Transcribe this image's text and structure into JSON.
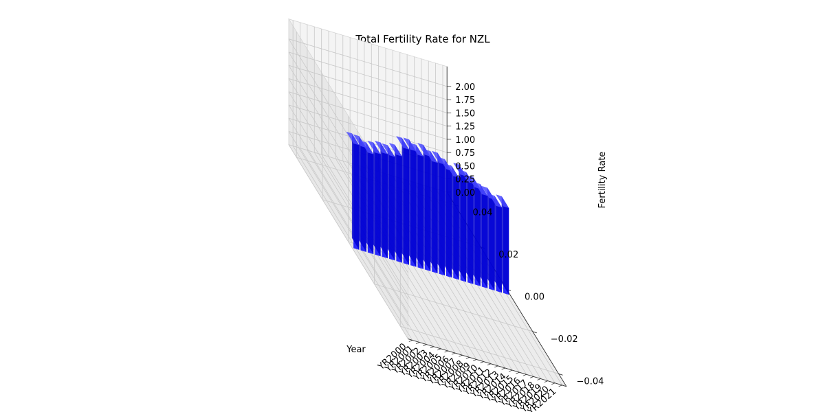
{
  "chart_data": {
    "type": "bar",
    "title": "Total Fertility Rate for NZL",
    "xlabel": "Year",
    "ylabel": "",
    "zlabel": "Fertility Rate",
    "categories": [
      "YR2000",
      "YR2001",
      "YR2002",
      "YR2003",
      "YR2004",
      "YR2005",
      "YR2006",
      "YR2007",
      "YR2008",
      "YR2009",
      "YR2010",
      "YR2011",
      "YR2012",
      "YR2013",
      "YR2014",
      "YR2015",
      "YR2016",
      "YR2017",
      "YR2018",
      "YR2019",
      "YR2020",
      "YR2021"
    ],
    "values": [
      1.98,
      1.97,
      1.89,
      1.93,
      1.97,
      1.96,
      2.01,
      2.18,
      2.19,
      2.13,
      2.17,
      2.09,
      2.1,
      2.02,
      1.93,
      2.0,
      1.9,
      1.84,
      1.75,
      1.72,
      1.61,
      1.64
    ],
    "y_ticks": [
      "0.04",
      "0.02",
      "0.00",
      "−0.02",
      "−0.04"
    ],
    "z_ticks": [
      "0.00",
      "0.25",
      "0.50",
      "0.75",
      "1.00",
      "1.25",
      "1.50",
      "1.75",
      "2.00"
    ],
    "zlim": [
      0,
      2.2
    ],
    "grid": true,
    "bar_color": "#0000ff",
    "pane_color": "#f2f2f2",
    "grid_color": "#c8c8c8"
  }
}
